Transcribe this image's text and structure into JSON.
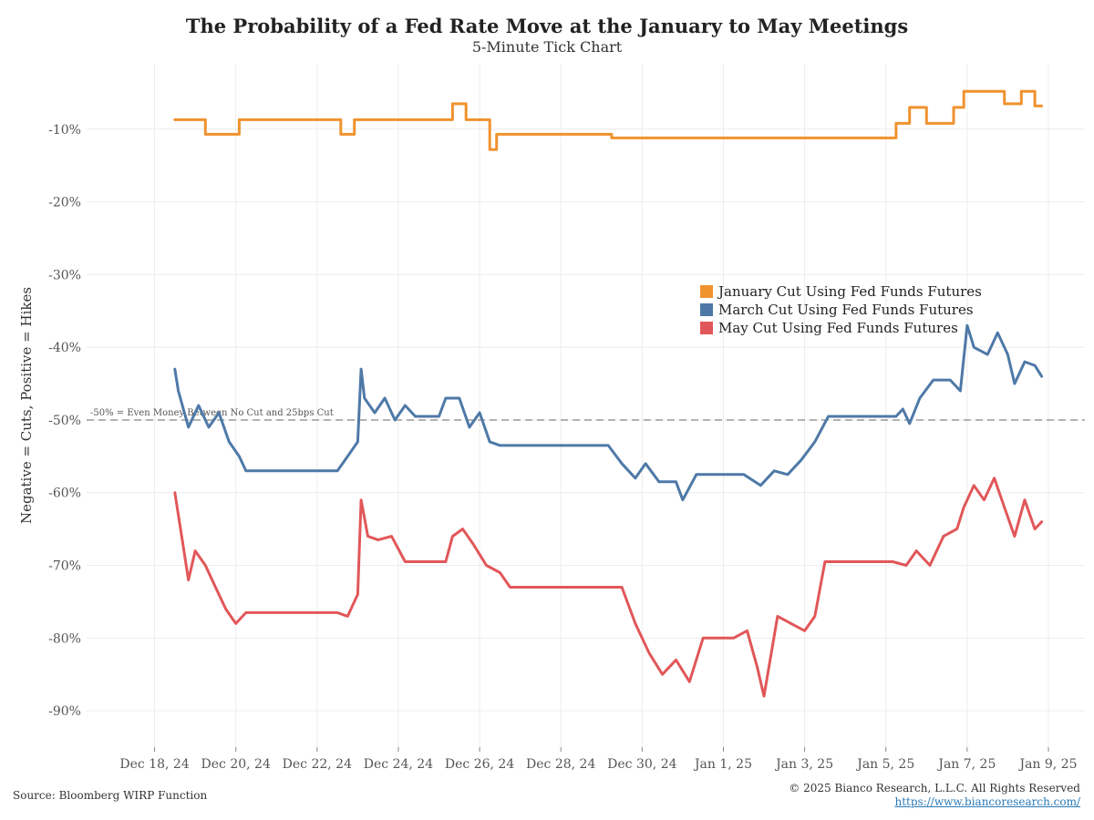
{
  "header": {
    "title": "The Probability of a Fed Rate Move at the January to May Meetings",
    "subtitle": "5-Minute Tick Chart"
  },
  "footer": {
    "source": "Source: Bloomberg WIRP Function",
    "copyright": "© 2025 Bianco Research, L.L.C. All Rights Reserved",
    "website": "https://www.biancoresearch.com/"
  },
  "colors": {
    "january": "#f0922e",
    "march": "#4e79a7",
    "may": "#e15759",
    "reference": "#999999",
    "grid": "#ececec"
  },
  "chart_data": {
    "type": "line",
    "title": "The Probability of a Fed Rate Move at the January to May Meetings",
    "subtitle": "5-Minute Tick Chart",
    "xlabel": "",
    "ylabel": "Negative = Cuts, Positive = Hikes",
    "xlim": [
      "2024-12-17",
      "2025-01-09"
    ],
    "ylim": [
      -0.95,
      -0.01
    ],
    "y_ticks": [
      -0.1,
      -0.2,
      -0.3,
      -0.4,
      -0.5,
      -0.6,
      -0.7,
      -0.8,
      -0.9
    ],
    "y_tick_labels": [
      "-10%",
      "-20%",
      "-30%",
      "-40%",
      "-50%",
      "-60%",
      "-70%",
      "-80%",
      "-90%"
    ],
    "x_ticks": [
      "2024-12-18",
      "2024-12-20",
      "2024-12-22",
      "2024-12-24",
      "2024-12-26",
      "2024-12-28",
      "2024-12-30",
      "2025-01-01",
      "2025-01-03",
      "2025-01-05",
      "2025-01-07",
      "2025-01-09"
    ],
    "x_tick_labels": [
      "Dec 18, 24",
      "Dec 20, 24",
      "Dec 22, 24",
      "Dec 24, 24",
      "Dec 26, 24",
      "Dec 28, 24",
      "Dec 30, 24",
      "Jan 1, 25",
      "Jan 3, 25",
      "Jan 5, 25",
      "Jan 7, 25",
      "Jan 9, 25"
    ],
    "grid": true,
    "legend_position": "center-right",
    "reference_line": {
      "y": -0.5,
      "label": "-50% = Even Money Between No Cut and 25bps Cut"
    },
    "series": [
      {
        "name": "January Cut Using Fed Funds Futures",
        "color": "#f0922e",
        "x": [
          "2024-12-18 12:00",
          "2024-12-19 06:00",
          "2024-12-19 06:00",
          "2024-12-20 02:00",
          "2024-12-20 02:00",
          "2024-12-22 14:00",
          "2024-12-22 14:00",
          "2024-12-22 22:00",
          "2024-12-22 22:00",
          "2024-12-24 00:00",
          "2024-12-25 00:00",
          "2024-12-25 08:00",
          "2024-12-25 08:00",
          "2024-12-25 16:00",
          "2024-12-25 16:00",
          "2024-12-26 00:00",
          "2024-12-26 06:00",
          "2024-12-26 06:00",
          "2024-12-26 10:00",
          "2024-12-26 10:00",
          "2024-12-29 06:00",
          "2024-12-29 06:00",
          "2025-01-05 06:00",
          "2025-01-05 06:00",
          "2025-01-05 14:00",
          "2025-01-05 14:00",
          "2025-01-06 00:00",
          "2025-01-06 00:00",
          "2025-01-06 16:00",
          "2025-01-06 16:00",
          "2025-01-06 22:00",
          "2025-01-06 22:00",
          "2025-01-07 10:00",
          "2025-01-07 22:00",
          "2025-01-07 22:00",
          "2025-01-08 08:00",
          "2025-01-08 08:00",
          "2025-01-08 16:00",
          "2025-01-08 16:00",
          "2025-01-08 20:00"
        ],
        "y": [
          -0.087,
          -0.087,
          -0.107,
          -0.107,
          -0.087,
          -0.087,
          -0.107,
          -0.107,
          -0.087,
          -0.087,
          -0.087,
          -0.087,
          -0.065,
          -0.065,
          -0.087,
          -0.087,
          -0.087,
          -0.128,
          -0.128,
          -0.107,
          -0.107,
          -0.112,
          -0.112,
          -0.092,
          -0.092,
          -0.07,
          -0.07,
          -0.092,
          -0.092,
          -0.07,
          -0.07,
          -0.048,
          -0.048,
          -0.048,
          -0.065,
          -0.065,
          -0.048,
          -0.048,
          -0.068,
          -0.068
        ]
      },
      {
        "name": "March Cut Using Fed Funds Futures",
        "color": "#4e79a7",
        "x": [
          "2024-12-18 12:00",
          "2024-12-18 14:00",
          "2024-12-18 20:00",
          "2024-12-19 02:00",
          "2024-12-19 08:00",
          "2024-12-19 14:00",
          "2024-12-19 20:00",
          "2024-12-20 02:00",
          "2024-12-20 06:00",
          "2024-12-20 12:00",
          "2024-12-22 12:00",
          "2024-12-22 18:00",
          "2024-12-23 00:00",
          "2024-12-23 02:00",
          "2024-12-23 04:00",
          "2024-12-23 10:00",
          "2024-12-23 16:00",
          "2024-12-23 22:00",
          "2024-12-24 04:00",
          "2024-12-24 10:00",
          "2024-12-25 00:00",
          "2024-12-25 04:00",
          "2024-12-25 12:00",
          "2024-12-25 18:00",
          "2024-12-26 00:00",
          "2024-12-26 06:00",
          "2024-12-26 12:00",
          "2024-12-27 00:00",
          "2024-12-27 12:00",
          "2024-12-29 04:00",
          "2024-12-29 12:00",
          "2024-12-29 20:00",
          "2024-12-30 02:00",
          "2024-12-30 10:00",
          "2024-12-30 20:00",
          "2024-12-31 00:00",
          "2024-12-31 08:00",
          "2024-12-31 16:00",
          "2024-12-31 22:00",
          "2025-01-01 12:00",
          "2025-01-01 22:00",
          "2025-01-02 06:00",
          "2025-01-02 14:00",
          "2025-01-02 22:00",
          "2025-01-03 06:00",
          "2025-01-03 14:00",
          "2025-01-04 00:00",
          "2025-01-04 12:00",
          "2025-01-05 06:00",
          "2025-01-05 10:00",
          "2025-01-05 14:00",
          "2025-01-05 20:00",
          "2025-01-06 04:00",
          "2025-01-06 14:00",
          "2025-01-06 20:00",
          "2025-01-07 00:00",
          "2025-01-07 04:00",
          "2025-01-07 12:00",
          "2025-01-07 18:00",
          "2025-01-08 00:00",
          "2025-01-08 04:00",
          "2025-01-08 10:00",
          "2025-01-08 16:00",
          "2025-01-08 20:00"
        ],
        "y": [
          -0.43,
          -0.46,
          -0.51,
          -0.48,
          -0.51,
          -0.49,
          -0.53,
          -0.55,
          -0.57,
          -0.57,
          -0.57,
          -0.55,
          -0.53,
          -0.43,
          -0.47,
          -0.49,
          -0.47,
          -0.5,
          -0.48,
          -0.495,
          -0.495,
          -0.47,
          -0.47,
          -0.51,
          -0.49,
          -0.53,
          -0.535,
          -0.535,
          -0.535,
          -0.535,
          -0.56,
          -0.58,
          -0.56,
          -0.585,
          -0.585,
          -0.61,
          -0.575,
          -0.575,
          -0.575,
          -0.575,
          -0.59,
          -0.57,
          -0.575,
          -0.555,
          -0.53,
          -0.495,
          -0.495,
          -0.495,
          -0.495,
          -0.485,
          -0.505,
          -0.47,
          -0.445,
          -0.445,
          -0.46,
          -0.37,
          -0.4,
          -0.41,
          -0.38,
          -0.41,
          -0.45,
          -0.42,
          -0.425,
          -0.44
        ]
      },
      {
        "name": "May Cut Using Fed Funds Futures",
        "color": "#e15759",
        "x": [
          "2024-12-18 12:00",
          "2024-12-18 16:00",
          "2024-12-18 20:00",
          "2024-12-19 00:00",
          "2024-12-19 06:00",
          "2024-12-19 12:00",
          "2024-12-19 18:00",
          "2024-12-20 00:00",
          "2024-12-20 06:00",
          "2024-12-20 12:00",
          "2024-12-22 12:00",
          "2024-12-22 18:00",
          "2024-12-23 00:00",
          "2024-12-23 02:00",
          "2024-12-23 06:00",
          "2024-12-23 12:00",
          "2024-12-23 20:00",
          "2024-12-24 04:00",
          "2024-12-24 12:00",
          "2024-12-25 04:00",
          "2024-12-25 08:00",
          "2024-12-25 14:00",
          "2024-12-25 20:00",
          "2024-12-26 04:00",
          "2024-12-26 12:00",
          "2024-12-26 18:00",
          "2024-12-27 00:00",
          "2024-12-28 00:00",
          "2024-12-29 12:00",
          "2024-12-29 20:00",
          "2024-12-30 04:00",
          "2024-12-30 12:00",
          "2024-12-30 20:00",
          "2024-12-31 04:00",
          "2024-12-31 12:00",
          "2024-12-31 20:00",
          "2025-01-01 06:00",
          "2025-01-01 14:00",
          "2025-01-01 20:00",
          "2025-01-02 00:00",
          "2025-01-02 08:00",
          "2025-01-02 16:00",
          "2025-01-03 00:00",
          "2025-01-03 06:00",
          "2025-01-03 12:00",
          "2025-01-04 12:00",
          "2025-01-05 04:00",
          "2025-01-05 12:00",
          "2025-01-05 18:00",
          "2025-01-06 02:00",
          "2025-01-06 10:00",
          "2025-01-06 18:00",
          "2025-01-06 22:00",
          "2025-01-07 04:00",
          "2025-01-07 10:00",
          "2025-01-07 16:00",
          "2025-01-07 22:00",
          "2025-01-08 04:00",
          "2025-01-08 10:00",
          "2025-01-08 16:00",
          "2025-01-08 20:00"
        ],
        "y": [
          -0.6,
          -0.66,
          -0.72,
          -0.68,
          -0.7,
          -0.73,
          -0.76,
          -0.78,
          -0.765,
          -0.765,
          -0.765,
          -0.77,
          -0.74,
          -0.61,
          -0.66,
          -0.665,
          -0.66,
          -0.695,
          -0.695,
          -0.695,
          -0.66,
          -0.65,
          -0.67,
          -0.7,
          -0.71,
          -0.73,
          -0.73,
          -0.73,
          -0.73,
          -0.78,
          -0.82,
          -0.85,
          -0.83,
          -0.86,
          -0.8,
          -0.8,
          -0.8,
          -0.79,
          -0.84,
          -0.88,
          -0.77,
          -0.78,
          -0.79,
          -0.77,
          -0.695,
          -0.695,
          -0.695,
          -0.7,
          -0.68,
          -0.7,
          -0.66,
          -0.65,
          -0.62,
          -0.59,
          -0.61,
          -0.58,
          -0.62,
          -0.66,
          -0.61,
          -0.65,
          -0.64
        ]
      }
    ]
  }
}
